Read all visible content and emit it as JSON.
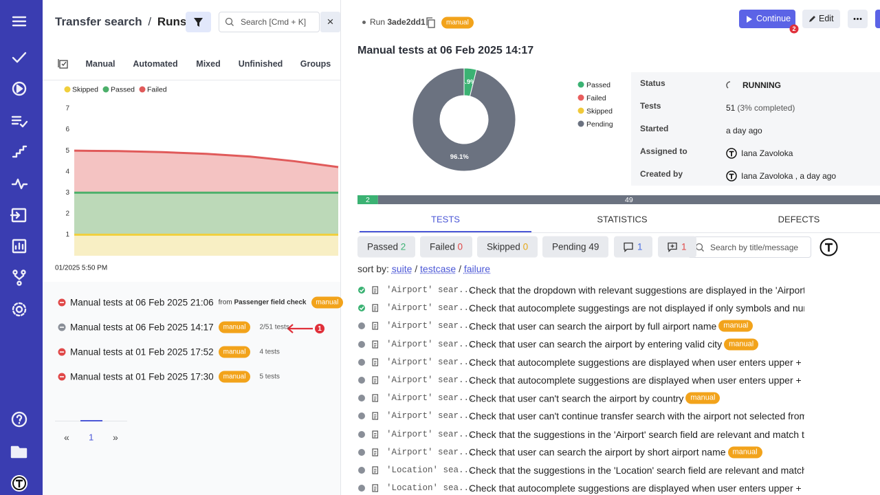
{
  "header": {
    "title": "Transfer search",
    "separator": "/",
    "current": "Runs",
    "search_placeholder": "Search [Cmd + K]",
    "close": "×"
  },
  "run_tabs": [
    "Manual",
    "Automated",
    "Mixed",
    "Unfinished",
    "Groups"
  ],
  "chart_data": [
    {
      "type": "area",
      "stacked": true,
      "categories": [
        "01/2025 5:50 PM",
        null,
        null,
        null,
        null,
        null,
        null
      ],
      "ylim": [
        0,
        7
      ],
      "yticks": [
        1,
        2,
        3,
        4,
        5,
        6,
        7
      ],
      "grid": false,
      "legend": "top-left",
      "series": [
        {
          "name": "Skipped",
          "color": "#f0cf3c",
          "fill": "#f8efc4",
          "values": [
            1,
            1,
            1,
            1,
            1,
            1,
            1
          ]
        },
        {
          "name": "Passed",
          "color": "#4caf6a",
          "fill": "#bcd9b8",
          "values": [
            2,
            2,
            2,
            2,
            2,
            2,
            2
          ]
        },
        {
          "name": "Failed",
          "color": "#e05a5a",
          "fill": "#f4c3c2",
          "values": [
            2,
            1.98,
            1.93,
            1.85,
            1.72,
            1.5,
            1.22
          ]
        }
      ]
    },
    {
      "type": "pie",
      "donut": true,
      "categories": [
        "Passed",
        "Failed",
        "Skipped",
        "Pending"
      ],
      "values": [
        3.9,
        0,
        0,
        96.1
      ],
      "value_labels": [
        "3.9%",
        null,
        null,
        "96.1%"
      ],
      "colors": [
        "#3bb273",
        "#e85d5d",
        "#f0c93a",
        "#6b7280"
      ]
    },
    {
      "type": "progress",
      "values": [
        2,
        49
      ],
      "colors": [
        "#3bb273",
        "#6b7280"
      ]
    }
  ],
  "runs": [
    {
      "title": "Manual tests at 06 Feb 2025 21:06",
      "from_label": "from",
      "from": "Passenger field check",
      "badge": "manual",
      "status_color": "#e04848"
    },
    {
      "title": "Manual tests at 06 Feb 2025 14:17",
      "badge": "manual",
      "count": "2/51 tests",
      "status_color": "#8a8f98",
      "selected": true
    },
    {
      "title": "Manual tests at 01 Feb 2025 17:52",
      "badge": "manual",
      "count": "4 tests",
      "status_color": "#e04848"
    },
    {
      "title": "Manual tests at 01 Feb 2025 17:30",
      "badge": "manual",
      "count": "5 tests",
      "status_color": "#e04848"
    }
  ],
  "annotations": {
    "arrow_label": "1",
    "continue_badge": "2"
  },
  "pagination": {
    "prev": "«",
    "page": "1",
    "next": "»"
  },
  "run": {
    "label": "Run",
    "id": "3ade2dd1",
    "badge": "manual",
    "title": "Manual tests at 06 Feb 2025 14:17",
    "continue": "Continue",
    "edit": "Edit"
  },
  "details": [
    {
      "label": "Status",
      "value": "RUNNING"
    },
    {
      "label": "Tests",
      "value": "51",
      "note": "(3% completed)"
    },
    {
      "label": "Started",
      "value": "a day ago"
    },
    {
      "label": "Assigned to",
      "value": "Iana Zavoloka"
    },
    {
      "label": "Created by",
      "value": "Iana Zavoloka , a day ago"
    }
  ],
  "test_tabs": [
    "TESTS",
    "STATISTICS",
    "DEFECTS"
  ],
  "filters": [
    {
      "label": "Passed",
      "count": 2,
      "color": "#3bb273"
    },
    {
      "label": "Failed",
      "count": 0,
      "color": "#e04848"
    },
    {
      "label": "Skipped",
      "count": 0,
      "color": "#e6a817"
    },
    {
      "label": "Pending",
      "count": 49,
      "color": "#333333"
    }
  ],
  "comment_filters": [
    {
      "count": 1,
      "color": "#4a6ee0"
    },
    {
      "count": 1,
      "color": "#e04848"
    }
  ],
  "search_tests": "Search by title/message",
  "sort": {
    "label": "sort by:",
    "separator": "/",
    "options": [
      "suite",
      "testcase",
      "failure"
    ]
  },
  "tests": [
    {
      "suite": "'Airport' sear...",
      "title": "Check that the dropdown with relevant suggestions are displayed in the 'Airport' se",
      "status_color": "#3bb273"
    },
    {
      "suite": "'Airport' sear...",
      "title": "Check that autocomplete suggestings are not displayed if only symbols and numbe",
      "status_color": "#3bb273"
    },
    {
      "suite": "'Airport' sear...",
      "title": "Check that user can search the airport by full airport name",
      "badge": "manual",
      "status_color": "#8a8f98"
    },
    {
      "suite": "'Airport' sear...",
      "title": "Check that user can search the airport by entering valid city",
      "badge": "manual",
      "status_color": "#8a8f98"
    },
    {
      "suite": "'Airport' sear...",
      "title": "Check that autocomplete suggestions are displayed when user enters upper + lowe",
      "status_color": "#8a8f98"
    },
    {
      "suite": "'Airport' sear...",
      "title": "Check that autocomplete suggestions are displayed when user enters upper + lowe",
      "status_color": "#8a8f98"
    },
    {
      "suite": "'Airport' sear...",
      "title": "Check that user can't search the airport by country",
      "badge": "manual",
      "status_color": "#8a8f98"
    },
    {
      "suite": "'Airport' sear...",
      "title": "Check that user can't continue transfer search with the airport not selected from th",
      "status_color": "#8a8f98"
    },
    {
      "suite": "'Airport' sear...",
      "title": "Check that the suggestions in the 'Airport' search field are relevant and match the",
      "status_color": "#8a8f98"
    },
    {
      "suite": "'Airport' sear...",
      "title": "Check that user can search the airport by short airport name",
      "badge": "manual",
      "status_color": "#8a8f98"
    },
    {
      "suite": "'Location' sea...",
      "title": "Check that the suggestions in the 'Location' search field are relevant and match th",
      "status_color": "#8a8f98"
    },
    {
      "suite": "'Location' sea...",
      "title": "Check that autocomplete suggestions are displayed when user enters upper + lowe",
      "status_color": "#8a8f98"
    }
  ]
}
